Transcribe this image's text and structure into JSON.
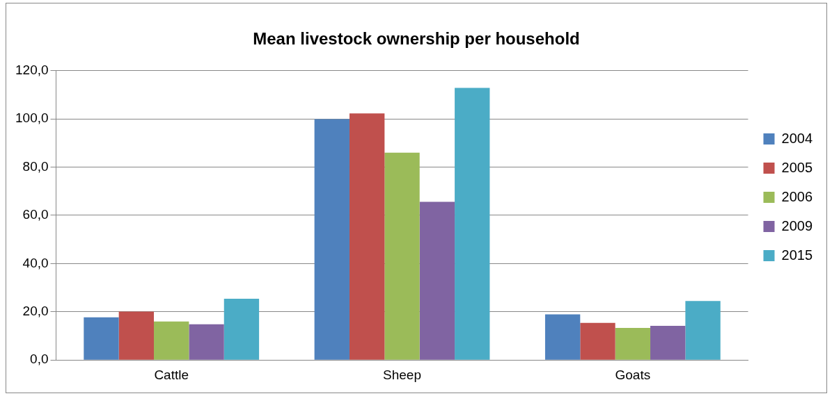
{
  "chart_data": {
    "type": "bar",
    "title": "Mean livestock ownership per household",
    "categories": [
      "Cattle",
      "Sheep",
      "Goats"
    ],
    "series": [
      {
        "name": "2004",
        "color": "#4f81bd",
        "values": [
          17.7,
          99.9,
          18.9
        ]
      },
      {
        "name": "2005",
        "color": "#c0504d",
        "values": [
          20.1,
          102.3,
          15.4
        ]
      },
      {
        "name": "2006",
        "color": "#9bbb59",
        "values": [
          16.0,
          86.0,
          13.3
        ]
      },
      {
        "name": "2009",
        "color": "#8064a2",
        "values": [
          14.8,
          65.6,
          14.2
        ]
      },
      {
        "name": "2015",
        "color": "#4bacc6",
        "values": [
          25.4,
          112.9,
          24.5
        ]
      }
    ],
    "ylim": [
      0,
      120
    ],
    "yticks": [
      {
        "value": 0,
        "label": "0,0"
      },
      {
        "value": 20,
        "label": "20,0"
      },
      {
        "value": 40,
        "label": "40,0"
      },
      {
        "value": 60,
        "label": "60,0"
      },
      {
        "value": 80,
        "label": "80,0"
      },
      {
        "value": 100,
        "label": "100,0"
      },
      {
        "value": 120,
        "label": "120,0"
      }
    ],
    "grid": "y",
    "legend": "right"
  }
}
